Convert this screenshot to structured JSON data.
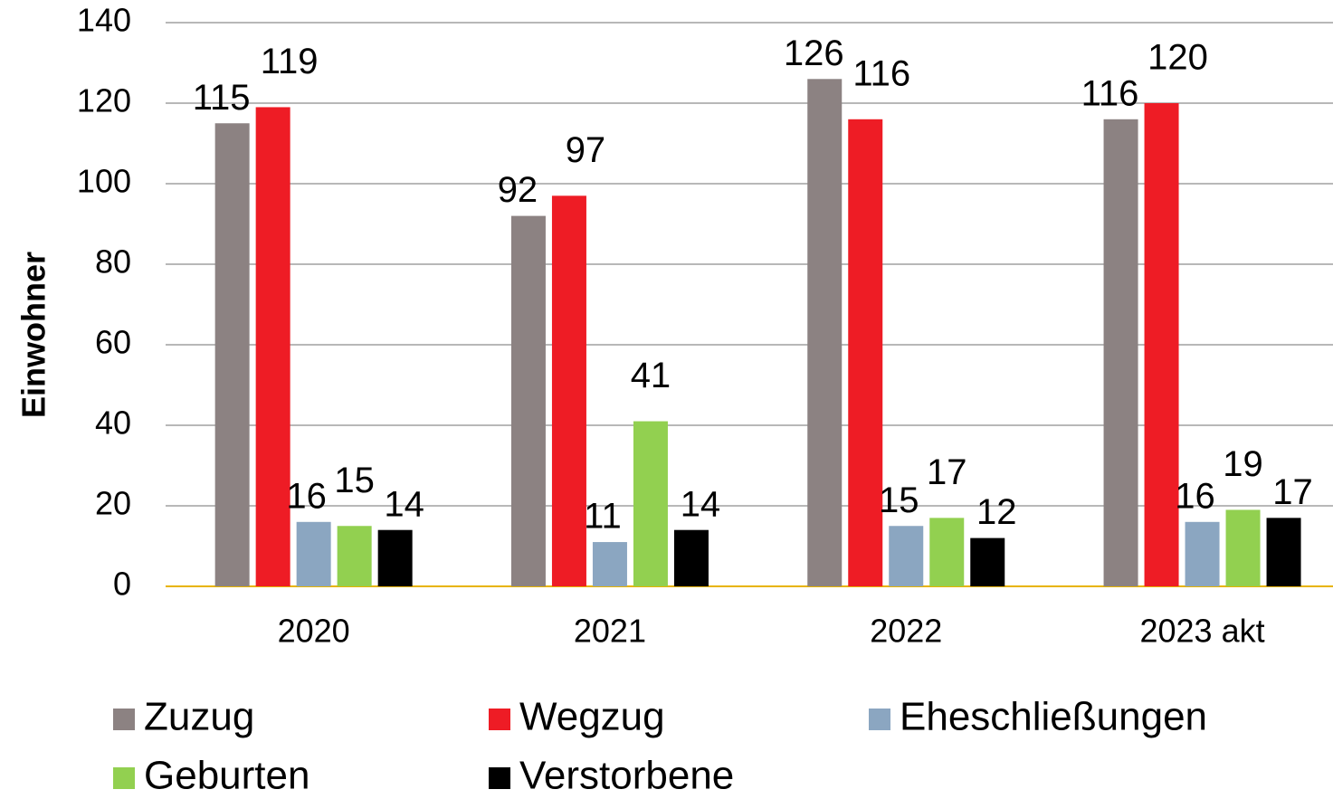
{
  "chart_data": {
    "type": "bar",
    "y_label": "Einwohner",
    "categories": [
      "2020",
      "2021",
      "2022",
      "2023 akt"
    ],
    "series": [
      {
        "name": "Zuzug",
        "color": "#8c8282",
        "values": [
          115,
          92,
          126,
          116
        ]
      },
      {
        "name": "Wegzug",
        "color": "#ee1c25",
        "values": [
          119,
          97,
          116,
          120
        ]
      },
      {
        "name": "Eheschließungen",
        "color": "#8ba6c1",
        "values": [
          16,
          11,
          15,
          16
        ]
      },
      {
        "name": "Geburten",
        "color": "#92d050",
        "values": [
          15,
          41,
          17,
          19
        ]
      },
      {
        "name": "Verstorbene",
        "color": "#000000",
        "values": [
          14,
          14,
          12,
          17
        ]
      }
    ],
    "ylim": [
      0,
      140
    ],
    "yticks": [
      0,
      20,
      40,
      60,
      80,
      100,
      120,
      140
    ],
    "grid": true
  }
}
